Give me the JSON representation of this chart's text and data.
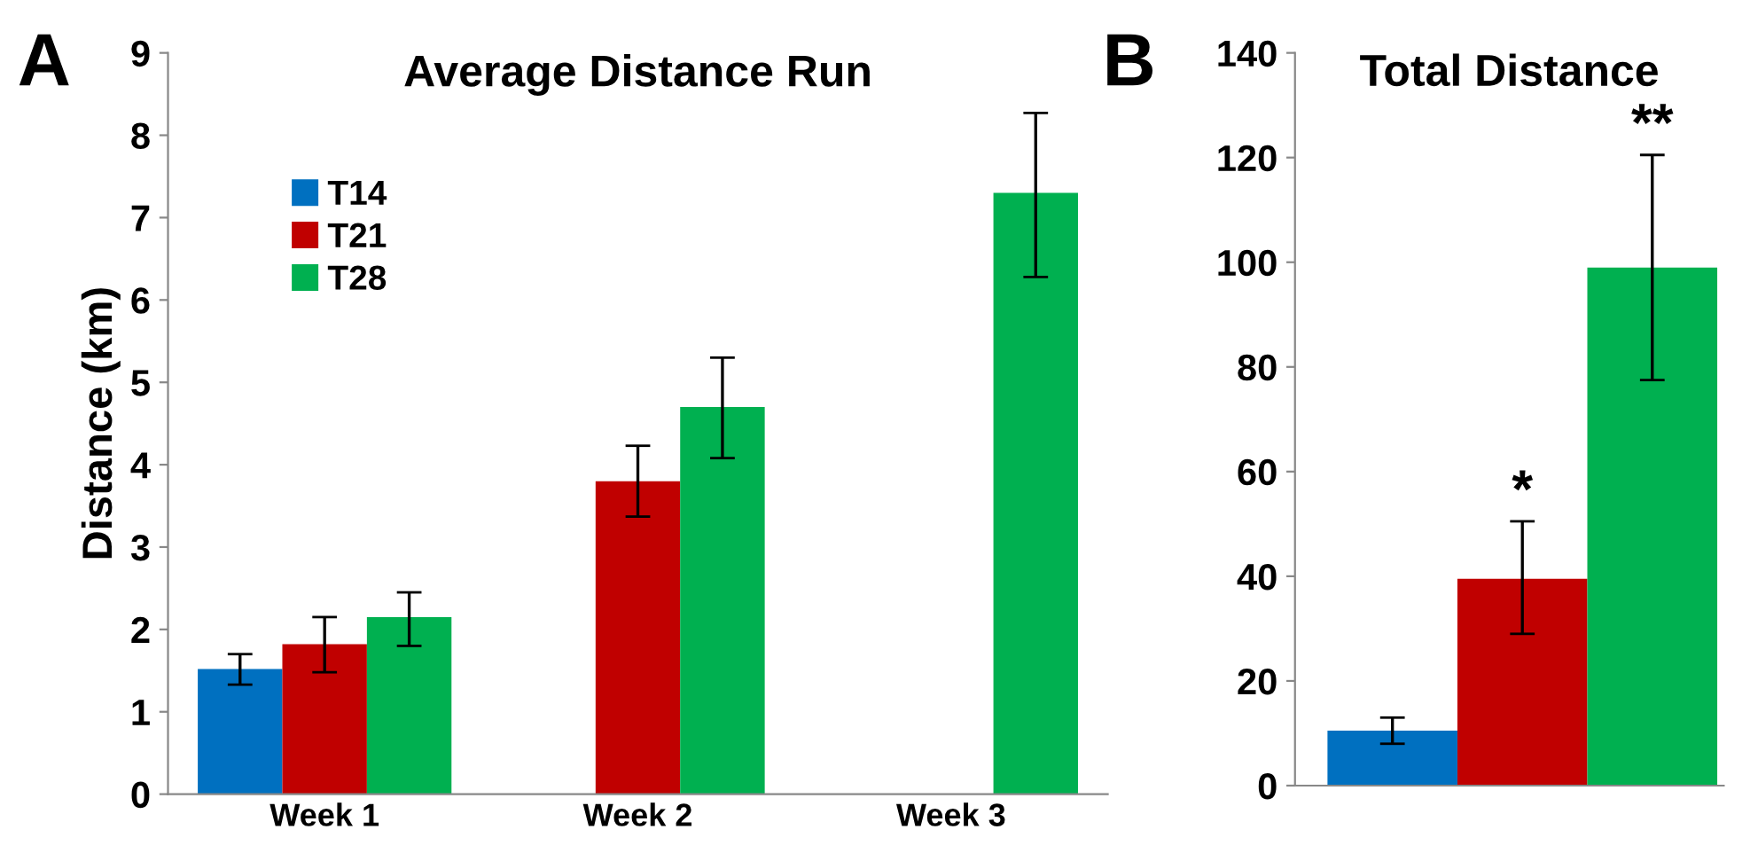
{
  "chart_data": [
    {
      "type": "bar",
      "title": "Average Distance Run",
      "ylabel": "Distance (km)",
      "categories": [
        "Week 1",
        "Week 2",
        "Week 3"
      ],
      "series": [
        {
          "name": "T14",
          "color": "#0070c0",
          "values": [
            1.52,
            null,
            null
          ],
          "errors": [
            [
              1.33,
              1.7
            ],
            null,
            null
          ]
        },
        {
          "name": "T21",
          "color": "#c00000",
          "values": [
            1.82,
            3.8,
            null
          ],
          "errors": [
            [
              1.48,
              2.15
            ],
            [
              3.37,
              4.23
            ],
            null
          ]
        },
        {
          "name": "T28",
          "color": "#00b050",
          "values": [
            2.15,
            4.7,
            7.3
          ],
          "errors": [
            [
              1.8,
              2.45
            ],
            [
              4.08,
              5.3
            ],
            [
              6.28,
              8.27
            ]
          ]
        }
      ],
      "ylim": [
        0,
        9
      ],
      "yticks": [
        0,
        1,
        2,
        3,
        4,
        5,
        6,
        7,
        8,
        9
      ],
      "grid": false,
      "legend": "left",
      "annotations": [
        "A"
      ]
    },
    {
      "type": "bar",
      "title": "Total Distance",
      "categories": [
        null,
        null,
        null
      ],
      "values": [
        10.5,
        39.5,
        99
      ],
      "colors": [
        "#0070c0",
        "#c00000",
        "#00b050"
      ],
      "errors": [
        [
          8,
          13
        ],
        [
          29,
          50.5
        ],
        [
          77.5,
          120.5
        ]
      ],
      "value_labels": [
        null,
        "*",
        "**"
      ],
      "ylim": [
        0,
        140
      ],
      "yticks": [
        0,
        20,
        40,
        60,
        80,
        100,
        120,
        140
      ],
      "grid": false,
      "tick_labels": "y",
      "annotations": [
        "B"
      ]
    }
  ]
}
